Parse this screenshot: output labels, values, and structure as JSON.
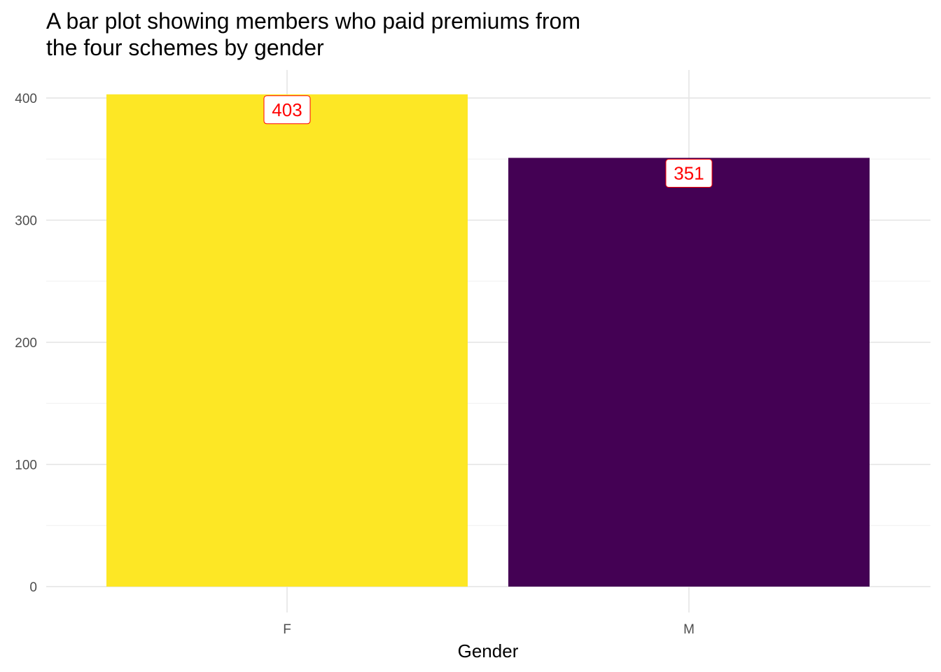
{
  "chart_data": {
    "type": "bar",
    "title_lines": [
      "A bar plot showing members who paid premiums from",
      "the four schemes by gender"
    ],
    "title": "A bar plot showing members who paid premiums from the four schemes by gender",
    "xlabel": "Gender",
    "ylabel": "",
    "categories": [
      "F",
      "M"
    ],
    "values": [
      403,
      351
    ],
    "data_labels": [
      "403",
      "351"
    ],
    "bar_colors": [
      "#FDE725",
      "#440154"
    ],
    "label_text_color": "#FF0000",
    "label_border_color": "#FF0000",
    "ylim": [
      0,
      400
    ],
    "yticks": [
      0,
      100,
      200,
      300,
      400
    ],
    "ytick_labels": [
      "0",
      "100",
      "200",
      "300",
      "400"
    ],
    "grid": true,
    "legend": "none"
  }
}
